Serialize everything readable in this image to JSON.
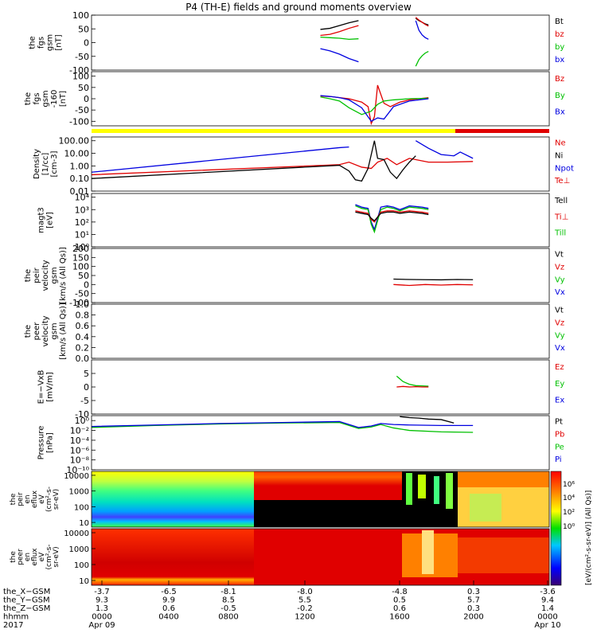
{
  "title": "P4 (TH-E) fields and ground moments overview",
  "colors": {
    "black": "#000000",
    "red": "#e00000",
    "green": "#00c000",
    "blue": "#0000e0",
    "yellow": "#ffff00"
  },
  "chart_data": {
    "type": "line",
    "panels": [
      {
        "label": [
          "the",
          "fgs",
          "gsm",
          "[nT]"
        ],
        "ylim": [
          -100,
          100
        ],
        "ticks": [
          "100",
          "50",
          "0",
          "-50",
          "-100"
        ],
        "tick_values": [
          100,
          50,
          0,
          -50,
          -100
        ],
        "legend": [
          {
            "text": "Bt",
            "color": "black"
          },
          {
            "text": "bz",
            "color": "red"
          },
          {
            "text": "by",
            "color": "green"
          },
          {
            "text": "bx",
            "color": "blue"
          }
        ],
        "series": [
          {
            "color": "black",
            "x": [
              1440,
              1500,
              1560,
              1620,
              1680
            ],
            "y": [
              48,
              52,
              62,
              72,
              80
            ]
          },
          {
            "color": "red",
            "x": [
              1440,
              1500,
              1560,
              1620,
              1680
            ],
            "y": [
              26,
              30,
              40,
              52,
              62
            ]
          },
          {
            "color": "green",
            "x": [
              1440,
              1500,
              1560,
              1620,
              1680
            ],
            "y": [
              20,
              18,
              16,
              12,
              14
            ]
          },
          {
            "color": "blue",
            "x": [
              1440,
              1500,
              1560,
              1620,
              1680
            ],
            "y": [
              -22,
              -30,
              -42,
              -58,
              -70
            ]
          },
          {
            "color": "black",
            "x": [
              2040,
              2060,
              2080,
              2100,
              2120
            ],
            "y": [
              88,
              80,
              74,
              68,
              64
            ]
          },
          {
            "color": "red",
            "x": [
              2040,
              2060,
              2080,
              2100,
              2120
            ],
            "y": [
              92,
              82,
              74,
              66,
              60
            ]
          },
          {
            "color": "green",
            "x": [
              2040,
              2060,
              2080,
              2100,
              2120
            ],
            "y": [
              -86,
              -62,
              -48,
              -38,
              -32
            ]
          },
          {
            "color": "blue",
            "x": [
              2040,
              2060,
              2080,
              2100,
              2120
            ],
            "y": [
              80,
              45,
              28,
              18,
              12
            ]
          }
        ]
      },
      {
        "label": [
          "the",
          "fgs",
          "gsm",
          "-160",
          "[nT]"
        ],
        "ylim": [
          -120,
          120
        ],
        "ticks": [
          "100",
          "50",
          "0",
          "-50",
          "-100"
        ],
        "tick_values": [
          100,
          50,
          0,
          -50,
          -100
        ],
        "legend": [
          {
            "text": "Bz",
            "color": "red"
          },
          {
            "text": "By",
            "color": "green"
          },
          {
            "text": "Bx",
            "color": "blue"
          }
        ],
        "series": [
          {
            "color": "red",
            "x": [
              1440,
              1500,
              1560,
              1620,
              1700,
              1740,
              1760,
              1780,
              1800,
              1840,
              1880,
              1940,
              2000,
              2120
            ],
            "y": [
              12,
              10,
              5,
              0,
              -15,
              -35,
              -110,
              -80,
              60,
              -20,
              -35,
              -15,
              -5,
              5
            ]
          },
          {
            "color": "green",
            "x": [
              1440,
              1500,
              1560,
              1620,
              1700,
              1760,
              1800,
              1840,
              1900,
              2000,
              2120
            ],
            "y": [
              8,
              0,
              -10,
              -40,
              -70,
              -55,
              -25,
              -10,
              -5,
              0,
              2
            ]
          },
          {
            "color": "blue",
            "x": [
              1440,
              1500,
              1560,
              1620,
              1700,
              1760,
              1800,
              1840,
              1900,
              2000,
              2120
            ],
            "y": [
              14,
              10,
              5,
              -5,
              -40,
              -100,
              -85,
              -90,
              -35,
              -10,
              0
            ]
          }
        ]
      },
      {
        "label": [
          "Density",
          "[1/cc]",
          "[cm-3]"
        ],
        "ylim": [
          -2,
          2.3
        ],
        "log": true,
        "ticks": [
          "100.00",
          "10.00",
          "1.00",
          "0.10",
          "0.01"
        ],
        "tick_values": [
          2,
          1,
          0,
          -1,
          -2
        ],
        "legend": [
          {
            "text": "Ne",
            "color": "red"
          },
          {
            "text": "Ni",
            "color": "black"
          },
          {
            "text": "Npot",
            "color": "blue"
          },
          {
            "text": "Te⊥",
            "color": "red"
          }
        ],
        "series": [
          {
            "color": "blue",
            "x": [
              0,
              1560,
              1620
            ],
            "y": [
              -0.5,
              1.45,
              1.5
            ]
          },
          {
            "color": "red",
            "x": [
              0,
              1560,
              1620,
              1700,
              1760,
              1800,
              1860,
              1920,
              2000,
              2120,
              2240,
              2400
            ],
            "y": [
              -0.7,
              0.1,
              0.3,
              -0.1,
              -0.2,
              0.3,
              0.6,
              0.1,
              0.6,
              0.3,
              0.3,
              0.35
            ]
          },
          {
            "color": "black",
            "x": [
              0,
              1560,
              1620,
              1660,
              1700,
              1740,
              1780,
              1800,
              1840,
              1880,
              1920,
              1960,
              2000,
              2040
            ],
            "y": [
              -1.0,
              0.05,
              -0.4,
              -1.1,
              -1.2,
              -0.2,
              2.0,
              0.6,
              0.5,
              -0.5,
              -1.0,
              -0.3,
              0.3,
              0.8
            ]
          },
          {
            "color": "blue",
            "x": [
              2040,
              2120,
              2200,
              2280,
              2320,
              2400
            ],
            "y": [
              2.0,
              1.4,
              0.9,
              0.8,
              1.1,
              0.6
            ]
          }
        ]
      },
      {
        "label": [
          "magt3",
          "[eV]"
        ],
        "ylim": [
          0,
          4.3
        ],
        "log": true,
        "ticks": [
          "10⁴",
          "10³",
          "10²",
          "10¹",
          "10⁰"
        ],
        "tick_values": [
          4,
          3,
          2,
          1,
          0
        ],
        "legend": [
          {
            "text": "Tell",
            "color": "black"
          },
          {
            "text": "Ti⊥",
            "color": "red"
          },
          {
            "text": "Till",
            "color": "green"
          }
        ],
        "series": [
          {
            "color": "blue",
            "x": [
              1660,
              1700,
              1740,
              1760,
              1780,
              1820,
              1860,
              1900,
              1940,
              2000,
              2080,
              2120
            ],
            "y": [
              3.4,
              3.2,
              3.1,
              2.0,
              1.4,
              3.2,
              3.3,
              3.2,
              3.0,
              3.3,
              3.2,
              3.1
            ]
          },
          {
            "color": "green",
            "x": [
              1660,
              1700,
              1740,
              1760,
              1780,
              1820,
              1860,
              1900,
              1940,
              2000,
              2080,
              2120
            ],
            "y": [
              3.3,
              3.1,
              3.0,
              1.8,
              1.2,
              3.0,
              3.2,
              3.1,
              2.9,
              3.2,
              3.1,
              3.0
            ]
          },
          {
            "color": "red",
            "x": [
              1660,
              1700,
              1740,
              1760,
              1780,
              1820,
              1860,
              1900,
              1940,
              2000,
              2080,
              2120
            ],
            "y": [
              2.9,
              2.8,
              2.7,
              2.2,
              2.0,
              2.8,
              2.9,
              2.9,
              2.8,
              2.9,
              2.8,
              2.7
            ]
          },
          {
            "color": "black",
            "x": [
              1660,
              1700,
              1740,
              1760,
              1780,
              1820,
              1860,
              1900,
              1940,
              2000,
              2080,
              2120
            ],
            "y": [
              2.8,
              2.7,
              2.6,
              2.3,
              2.1,
              2.7,
              2.8,
              2.8,
              2.7,
              2.8,
              2.7,
              2.6
            ]
          }
        ]
      },
      {
        "label": [
          "the",
          "peir",
          "velocity",
          "gsm",
          "[km/s (All Qs)]"
        ],
        "ylim": [
          -100,
          200
        ],
        "ticks": [
          "200",
          "150",
          "100",
          "50",
          "0",
          "-50",
          "-100"
        ],
        "tick_values": [
          200,
          150,
          100,
          50,
          0,
          -50,
          -100
        ],
        "legend": [
          {
            "text": "Vt",
            "color": "black"
          },
          {
            "text": "Vz",
            "color": "red"
          },
          {
            "text": "Vy",
            "color": "green"
          },
          {
            "text": "Vx",
            "color": "blue"
          }
        ],
        "series": [
          {
            "color": "black",
            "x": [
              1900,
              2000,
              2100,
              2200,
              2300,
              2400
            ],
            "y": [
              30,
              28,
              27,
              26,
              28,
              27
            ]
          },
          {
            "color": "red",
            "x": [
              1900,
              2000,
              2100,
              2200,
              2300,
              2400
            ],
            "y": [
              0,
              -5,
              0,
              -3,
              0,
              -2
            ]
          }
        ]
      },
      {
        "label": [
          "the",
          "peer",
          "velocity",
          "gsm",
          "[km/s (All Qs)]"
        ],
        "ylim": [
          0,
          1
        ],
        "ticks": [
          "1.0",
          "0.8",
          "0.6",
          "0.4",
          "0.2",
          "0.0"
        ],
        "tick_values": [
          1,
          0.8,
          0.6,
          0.4,
          0.2,
          0
        ],
        "legend": [
          {
            "text": "Vt",
            "color": "black"
          },
          {
            "text": "Vz",
            "color": "red"
          },
          {
            "text": "Vy",
            "color": "green"
          },
          {
            "text": "Vx",
            "color": "blue"
          }
        ],
        "series": []
      },
      {
        "label": [
          "E=−VxB",
          "[mV/m]"
        ],
        "ylim": [
          -10,
          10
        ],
        "ticks": [
          "5",
          "0",
          "-5",
          "-10"
        ],
        "tick_values": [
          5,
          0,
          -5,
          -10
        ],
        "legend": [
          {
            "text": "Ez",
            "color": "red"
          },
          {
            "text": "Ey",
            "color": "green"
          },
          {
            "text": "Ex",
            "color": "blue"
          }
        ],
        "series": [
          {
            "color": "green",
            "x": [
              1920,
              1960,
              2000,
              2040,
              2080,
              2120
            ],
            "y": [
              4,
              2,
              1,
              0.5,
              0.4,
              0.3
            ]
          },
          {
            "color": "red",
            "x": [
              1920,
              1960,
              2000,
              2040,
              2080,
              2120
            ],
            "y": [
              0,
              0.2,
              0,
              0.1,
              0,
              0
            ]
          }
        ]
      },
      {
        "label": [
          "Pressure",
          "[nPa]"
        ],
        "ylim": [
          -10,
          1
        ],
        "log": true,
        "ticks": [
          "10⁰",
          "10⁻²",
          "10⁻⁴",
          "10⁻⁶",
          "10⁻⁸",
          "10⁻¹⁰"
        ],
        "tick_values": [
          0,
          -2,
          -4,
          -6,
          -8,
          -10
        ],
        "legend": [
          {
            "text": "Pt",
            "color": "black"
          },
          {
            "text": "Pb",
            "color": "red"
          },
          {
            "text": "Pe",
            "color": "green"
          },
          {
            "text": "Pi",
            "color": "blue"
          }
        ],
        "series": [
          {
            "color": "green",
            "x": [
              0,
              400,
              800,
              1200,
              1560,
              1680,
              1760,
              1820,
              1900,
              2000,
              2200,
              2400
            ],
            "y": [
              -1.4,
              -1.0,
              -0.7,
              -0.5,
              -0.4,
              -1.6,
              -1.3,
              -0.8,
              -1.5,
              -2.0,
              -2.3,
              -2.4
            ]
          },
          {
            "color": "blue",
            "x": [
              0,
              400,
              800,
              1200,
              1560,
              1680,
              1760,
              1820,
              1900,
              2000,
              2200,
              2400
            ],
            "y": [
              -1.2,
              -0.9,
              -0.6,
              -0.4,
              -0.2,
              -1.4,
              -1.1,
              -0.6,
              -0.8,
              -0.9,
              -1.0,
              -1.0
            ]
          },
          {
            "color": "black",
            "x": [
              1940,
              2000,
              2060,
              2120,
              2200,
              2280
            ],
            "y": [
              0.8,
              0.6,
              0.5,
              0.3,
              0.2,
              -0.5
            ]
          }
        ]
      }
    ],
    "spectrograms": [
      {
        "label": [
          "the",
          "peir",
          "en",
          "eflux",
          "eV",
          "(cm²-s-",
          "sr-eV)"
        ],
        "ticks": [
          "10000",
          "1000",
          "100",
          "10"
        ],
        "tick_values": [
          4,
          3,
          2,
          1
        ]
      },
      {
        "label": [
          "the",
          "peer",
          "en",
          "eflux",
          "eV",
          "(cm²-s-",
          "sr-eV)"
        ],
        "ticks": [
          "10000",
          "1000",
          "100",
          "10"
        ],
        "tick_values": [
          4,
          3,
          2,
          1
        ]
      }
    ],
    "colorbar": {
      "label": "[eV/(cm²-s-sr-eV)] (All Qs)]",
      "ticks": [
        "10⁶",
        "10⁴",
        "10²",
        "10⁰"
      ]
    },
    "xaxis": {
      "rows": [
        {
          "label": "the_X−GSM",
          "values": [
            "-3.7",
            "-6.5",
            "-8.1",
            "-8.0",
            "-4.8",
            "0.3",
            "-3.6"
          ]
        },
        {
          "label": "the_Y−GSM",
          "values": [
            "9.3",
            "9.9",
            "8.5",
            "5.5",
            "0.5",
            "5.7",
            "9.4"
          ]
        },
        {
          "label": "the_Z−GSM",
          "values": [
            "1.3",
            "0.6",
            "-0.5",
            "-0.2",
            "0.6",
            "0.3",
            "1.4"
          ]
        },
        {
          "label": "hhmm",
          "values": [
            "0000",
            "0400",
            "0800",
            "1200",
            "1600",
            "2000",
            "0000"
          ]
        },
        {
          "label": "2017",
          "values": [
            "Apr 09",
            "",
            "",
            "",
            "",
            "",
            "Apr 10"
          ]
        }
      ]
    }
  }
}
